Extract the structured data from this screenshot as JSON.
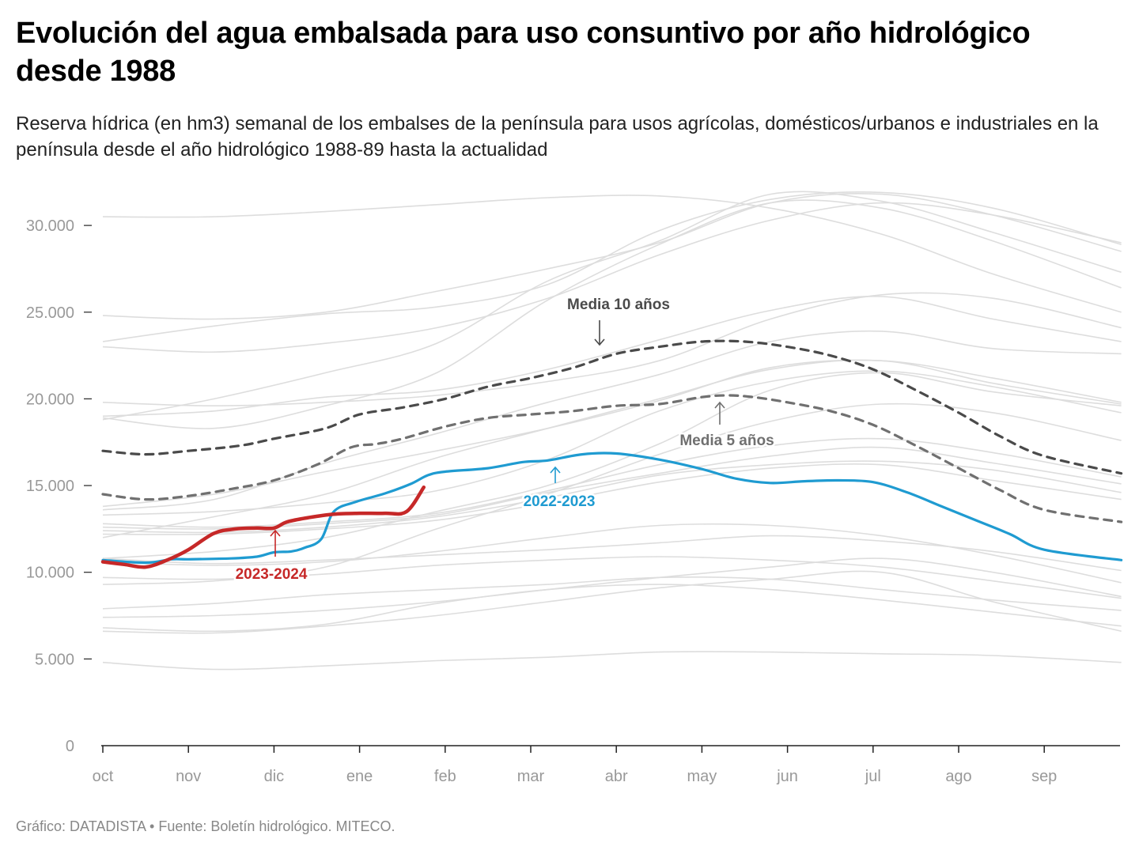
{
  "title": "Evolución del agua embalsada para uso consuntivo por año hidrológico desde 1988",
  "subtitle": "Reserva hídrica (en hm3) semanal de los embalses de la península para usos agrícolas, domésticos/urbanos e industriales en la península desde el año hidrológico 1988-89 hasta la actualidad",
  "footer": "Gráfico: DATADISTA • Fuente: Boletín hidrológico. MITECO.",
  "colors": {
    "background_lines": "#dddddd",
    "highlight_current": "#c62828",
    "highlight_previous": "#1f9bd1",
    "media10": "#4a4a4a",
    "media5": "#707070",
    "axis_text": "#999999"
  },
  "chart_data": {
    "type": "line",
    "x_unit": "month (0 = start of October)",
    "x_ticks": [
      "oct",
      "nov",
      "dic",
      "ene",
      "feb",
      "mar",
      "abr",
      "may",
      "jun",
      "jul",
      "ago",
      "sep"
    ],
    "y_ticks": [
      "0",
      "5.000",
      "10.000",
      "15.000",
      "20.000",
      "25.000",
      "30.000"
    ],
    "ylim": [
      0,
      30000
    ],
    "xlim": [
      0,
      11.9
    ],
    "series": [
      {
        "name": "2023-2024",
        "role": "highlight",
        "color": "#c62828",
        "x": [
          0,
          0.25,
          0.5,
          0.75,
          1.0,
          1.3,
          1.55,
          1.8,
          2.0,
          2.15,
          2.4,
          2.7,
          3.0,
          3.3,
          3.55,
          3.75
        ],
        "y": [
          10600,
          10450,
          10300,
          10700,
          11300,
          12250,
          12500,
          12550,
          12550,
          12900,
          13150,
          13350,
          13400,
          13400,
          13500,
          14900
        ]
      },
      {
        "name": "2022-2023",
        "role": "highlight",
        "color": "#1f9bd1",
        "x": [
          0,
          0.5,
          0.8,
          1.0,
          1.5,
          1.8,
          2.0,
          2.2,
          2.35,
          2.55,
          2.7,
          2.95,
          3.3,
          3.6,
          3.8,
          4.0,
          4.5,
          4.9,
          5.2,
          5.6,
          6.0,
          6.5,
          7.0,
          7.4,
          7.8,
          8.2,
          8.6,
          9.0,
          9.4,
          9.8,
          10.2,
          10.6,
          11.0,
          11.9
        ],
        "y": [
          10700,
          10550,
          10750,
          10750,
          10800,
          10900,
          11150,
          11200,
          11400,
          11900,
          13500,
          14050,
          14550,
          15100,
          15600,
          15800,
          16000,
          16350,
          16450,
          16800,
          16850,
          16500,
          15950,
          15400,
          15150,
          15250,
          15300,
          15200,
          14600,
          13800,
          13000,
          12200,
          11300,
          10700
        ]
      },
      {
        "name": "Media 10 años",
        "role": "average",
        "color": "#4a4a4a",
        "dash": "10,8",
        "x": [
          0,
          0.5,
          1.0,
          1.6,
          2.0,
          2.6,
          3.0,
          3.5,
          4.0,
          4.5,
          5.0,
          5.5,
          6.0,
          6.5,
          7.0,
          7.5,
          8.0,
          8.5,
          9.0,
          9.5,
          10.0,
          10.5,
          11.0,
          11.9
        ],
        "y": [
          17000,
          16800,
          17000,
          17300,
          17700,
          18300,
          19100,
          19500,
          20000,
          20700,
          21200,
          21800,
          22600,
          23000,
          23300,
          23300,
          23000,
          22500,
          21700,
          20500,
          19200,
          17800,
          16700,
          15700
        ]
      },
      {
        "name": "Media 5 años",
        "role": "average",
        "color": "#707070",
        "dash": "10,8",
        "x": [
          0,
          0.5,
          1.0,
          1.5,
          2.0,
          2.5,
          2.9,
          3.2,
          3.5,
          4.0,
          4.5,
          5.0,
          5.5,
          6.0,
          6.5,
          7.0,
          7.3,
          7.6,
          8.0,
          8.5,
          9.0,
          9.5,
          10.0,
          10.5,
          11.0,
          11.9
        ],
        "y": [
          14500,
          14200,
          14400,
          14800,
          15300,
          16200,
          17200,
          17400,
          17700,
          18400,
          18900,
          19100,
          19300,
          19600,
          19700,
          20100,
          20200,
          20100,
          19800,
          19300,
          18500,
          17300,
          16000,
          14700,
          13600,
          12900
        ]
      }
    ],
    "background_series": [
      [
        30500,
        30500,
        30800,
        31200,
        31600,
        31700,
        31000,
        29500,
        27200,
        25000
      ],
      [
        24800,
        24600,
        25000,
        26200,
        27500,
        29000,
        31300,
        31800,
        30600,
        28500
      ],
      [
        23000,
        22700,
        23200,
        24100,
        25800,
        28300,
        30300,
        31300,
        30600,
        29000
      ],
      [
        23300,
        24200,
        24900,
        25300,
        26600,
        29700,
        31500,
        31900,
        31000,
        28900
      ],
      [
        18800,
        20000,
        21500,
        23200,
        26800,
        29100,
        31800,
        31400,
        29600,
        27300
      ],
      [
        18900,
        18300,
        19600,
        21500,
        25700,
        28900,
        31300,
        31000,
        29100,
        26400
      ],
      [
        19800,
        19600,
        19800,
        20200,
        21000,
        22200,
        24600,
        26000,
        25800,
        24100
      ],
      [
        19000,
        19300,
        20100,
        20500,
        21700,
        23400,
        25100,
        25900,
        24600,
        23300
      ],
      [
        13600,
        14200,
        16300,
        18000,
        19800,
        21400,
        23300,
        23900,
        22900,
        22600
      ],
      [
        13800,
        14500,
        15800,
        17000,
        18300,
        19900,
        21800,
        22200,
        21200,
        19800
      ],
      [
        13300,
        13500,
        14000,
        14700,
        16500,
        19300,
        21000,
        21600,
        20700,
        19200
      ],
      [
        12000,
        13200,
        14500,
        16600,
        18300,
        20000,
        21700,
        22200,
        20900,
        19700
      ],
      [
        10800,
        11200,
        12000,
        13500,
        15000,
        17400,
        20500,
        21500,
        20400,
        19600
      ],
      [
        9300,
        9500,
        10300,
        12500,
        14500,
        16800,
        18700,
        19700,
        19200,
        17600
      ],
      [
        12800,
        12600,
        12900,
        13400,
        14700,
        16200,
        17300,
        17700,
        16900,
        15500
      ],
      [
        12600,
        12500,
        12800,
        13300,
        14600,
        15700,
        16700,
        17200,
        16300,
        15100
      ],
      [
        12400,
        12300,
        12600,
        13200,
        14300,
        15600,
        16200,
        16400,
        15900,
        14600
      ],
      [
        12200,
        12200,
        12500,
        13000,
        14000,
        15200,
        16000,
        16200,
        15300,
        14200
      ],
      [
        10600,
        10400,
        10600,
        11200,
        12000,
        12700,
        12700,
        12100,
        11000,
        9400
      ],
      [
        10800,
        10500,
        10700,
        11000,
        11300,
        11700,
        12100,
        11800,
        11200,
        10100
      ],
      [
        9700,
        9600,
        9900,
        10400,
        10700,
        10900,
        10700,
        10300,
        9500,
        8500
      ],
      [
        7900,
        8200,
        8700,
        9000,
        9300,
        9700,
        9600,
        9000,
        8400,
        7800
      ],
      [
        7400,
        7500,
        7800,
        8300,
        9000,
        9700,
        10300,
        10800,
        10000,
        8600
      ],
      [
        6800,
        6600,
        7000,
        8200,
        9000,
        9300,
        9000,
        8400,
        7700,
        6900
      ],
      [
        6600,
        6500,
        6900,
        7500,
        8300,
        9100,
        9600,
        10000,
        8300,
        6600
      ],
      [
        4800,
        4400,
        4600,
        4900,
        5100,
        5400,
        5400,
        5300,
        5200,
        4800
      ]
    ],
    "annotations": [
      {
        "label": "Media 10 años",
        "color": "#4a4a4a",
        "target_series": "Media 10 años"
      },
      {
        "label": "Media 5 años",
        "color": "#707070",
        "target_series": "Media 5 años"
      },
      {
        "label": "2022-2023",
        "color": "#1f9bd1",
        "target_series": "2022-2023"
      },
      {
        "label": "2023-2024",
        "color": "#c62828",
        "target_series": "2023-2024"
      }
    ]
  }
}
